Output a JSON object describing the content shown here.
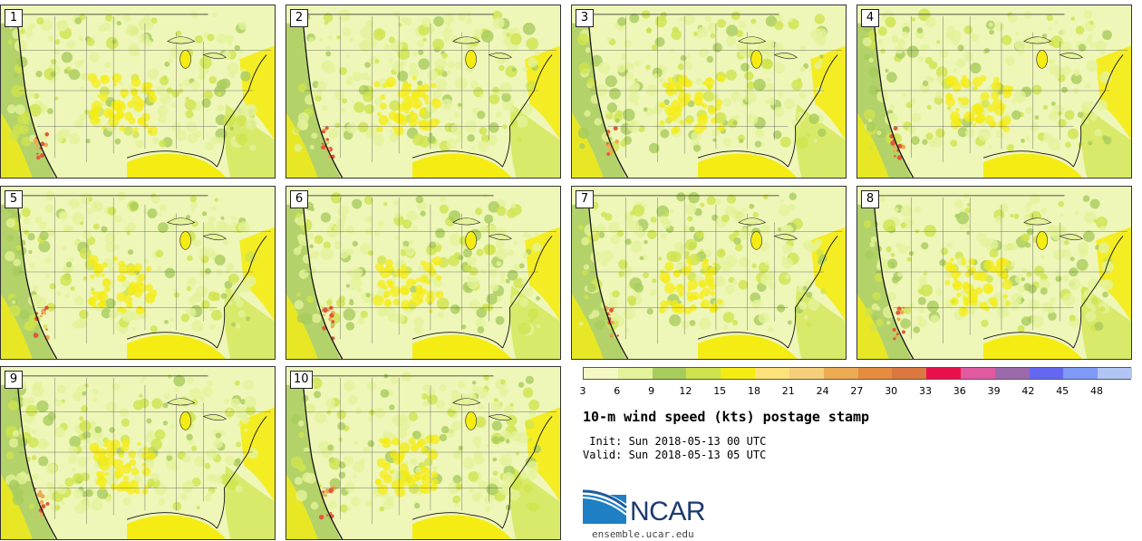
{
  "panels": [
    {
      "label": "1"
    },
    {
      "label": "2"
    },
    {
      "label": "3"
    },
    {
      "label": "4"
    },
    {
      "label": "5"
    },
    {
      "label": "6"
    },
    {
      "label": "7"
    },
    {
      "label": "8"
    },
    {
      "label": "9"
    },
    {
      "label": "10"
    }
  ],
  "colorbar": {
    "ticks": [
      "3",
      "6",
      "9",
      "12",
      "15",
      "18",
      "21",
      "24",
      "27",
      "30",
      "33",
      "36",
      "39",
      "42",
      "45",
      "48"
    ],
    "colors": [
      "#f4f9c4",
      "#e4f29a",
      "#a8cc5c",
      "#cfe34e",
      "#f5ec14",
      "#fbe27a",
      "#f6cf7a",
      "#ecaa52",
      "#e58c3e",
      "#da7840",
      "#e8104a",
      "#e05aa2",
      "#9a6aaa",
      "#6468f0",
      "#7e9af6",
      "#b2c6f6"
    ]
  },
  "title": "10-m wind speed (kts) postage stamp",
  "init": " Init: Sun 2018-05-13 00 UTC",
  "valid": "Valid: Sun 2018-05-13 05 UTC",
  "logo": {
    "text": "NCAR",
    "site": "ensemble.ucar.edu"
  }
}
